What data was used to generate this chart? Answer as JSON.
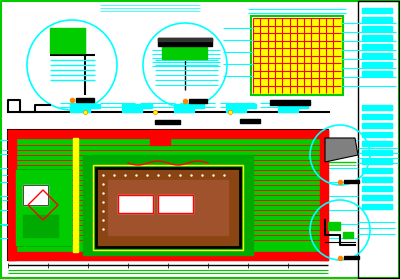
{
  "bg_color": "#ffffff",
  "border_color": "#00ff00",
  "cyan": "#00ffff",
  "red": "#ff0000",
  "green": "#00cc00",
  "yellow": "#ffff00",
  "black": "#000000",
  "orange": "#ff8800",
  "gray": "#808080",
  "darkgray": "#404040",
  "brown": "#8B4513",
  "magenta": "#ff00ff",
  "white": "#ffffff"
}
